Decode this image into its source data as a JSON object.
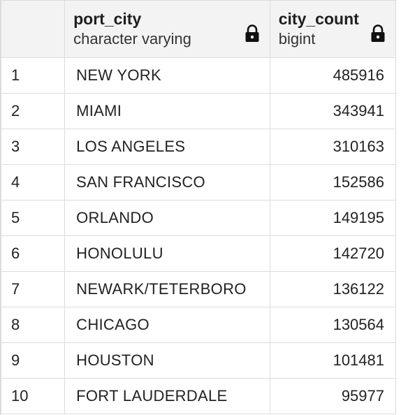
{
  "columns": [
    {
      "name": "port_city",
      "type": "character varying",
      "icon": "lock-icon"
    },
    {
      "name": "city_count",
      "type": "bigint",
      "icon": "lock-icon"
    }
  ],
  "rows": [
    {
      "num": "1",
      "port_city": "NEW YORK",
      "city_count": "485916"
    },
    {
      "num": "2",
      "port_city": "MIAMI",
      "city_count": "343941"
    },
    {
      "num": "3",
      "port_city": "LOS ANGELES",
      "city_count": "310163"
    },
    {
      "num": "4",
      "port_city": "SAN FRANCISCO",
      "city_count": "152586"
    },
    {
      "num": "5",
      "port_city": "ORLANDO",
      "city_count": "149195"
    },
    {
      "num": "6",
      "port_city": "HONOLULU",
      "city_count": "142720"
    },
    {
      "num": "7",
      "port_city": "NEWARK/TETERBORO",
      "city_count": "136122"
    },
    {
      "num": "8",
      "port_city": "CHICAGO",
      "city_count": "130564"
    },
    {
      "num": "9",
      "port_city": "HOUSTON",
      "city_count": "101481"
    },
    {
      "num": "10",
      "port_city": "FORT LAUDERDALE",
      "city_count": "95977"
    }
  ]
}
